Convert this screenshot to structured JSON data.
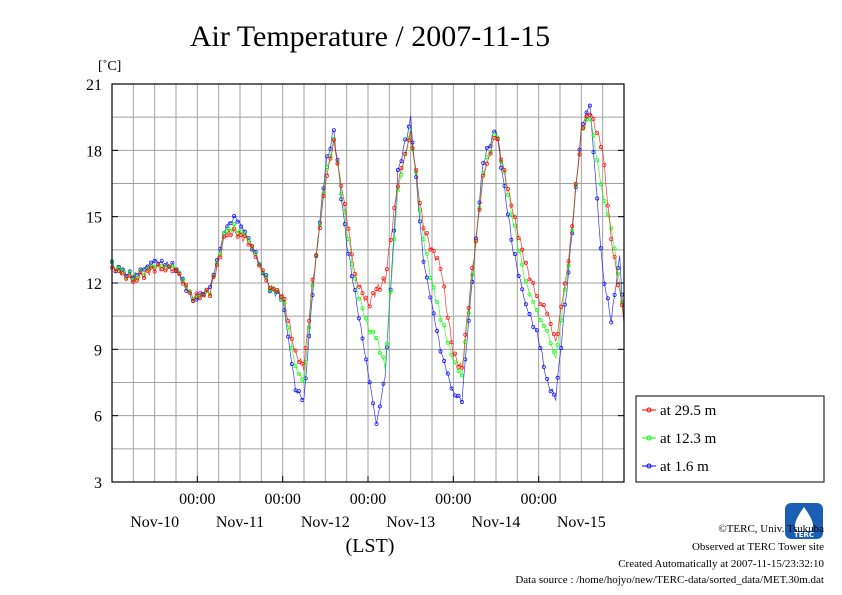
{
  "chart_data": {
    "type": "line",
    "title": "Air Temperature / 2007-11-15",
    "ylabel": "[˚C]",
    "xlabel": "(LST)",
    "ylim": [
      3,
      21
    ],
    "yticks": [
      3,
      6,
      9,
      12,
      15,
      18,
      21
    ],
    "xlim_days": [
      0,
      6
    ],
    "x_ticks": [
      {
        "pos": 1,
        "time": "00:00",
        "date": "Nov-11"
      },
      {
        "pos": 2,
        "time": "00:00",
        "date": "Nov-12"
      },
      {
        "pos": 3,
        "time": "00:00",
        "date": "Nov-13"
      },
      {
        "pos": 4,
        "time": "00:00",
        "date": "Nov-14"
      },
      {
        "pos": 5,
        "time": "00:00",
        "date": "Nov-15"
      }
    ],
    "day_labels": [
      "Nov-10",
      "Nov-11",
      "Nov-12",
      "Nov-13",
      "Nov-14",
      "Nov-15"
    ],
    "grid": true,
    "legend_position": "outside-right-bottom",
    "series": [
      {
        "name": "at 29.5 m",
        "color": "#ff0000",
        "x": [
          0,
          0.25,
          0.5,
          0.75,
          0.95,
          1.15,
          1.33,
          1.45,
          1.6,
          1.85,
          2.0,
          2.15,
          2.25,
          2.35,
          2.5,
          2.6,
          2.75,
          2.85,
          3.0,
          3.1,
          3.2,
          3.35,
          3.5,
          3.65,
          3.75,
          3.85,
          4.0,
          4.1,
          4.2,
          4.35,
          4.5,
          4.7,
          4.85,
          5.0,
          5.1,
          5.2,
          5.35,
          5.5,
          5.6,
          5.75,
          5.85,
          5.95,
          6.0
        ],
        "y": [
          12.7,
          12.1,
          12.7,
          12.6,
          11.3,
          11.6,
          14.2,
          14.3,
          13.9,
          11.8,
          11.5,
          8.8,
          8.2,
          12.0,
          16.5,
          18.4,
          15.0,
          12.3,
          11.0,
          11.7,
          12.1,
          16.5,
          18.8,
          14.5,
          13.5,
          12.8,
          8.8,
          8.1,
          11.8,
          16.8,
          18.8,
          15.2,
          12.8,
          11.2,
          10.7,
          9.3,
          13.0,
          18.8,
          19.8,
          18.0,
          14.0,
          11.6,
          10.3
        ]
      },
      {
        "name": "at 12.3 m",
        "color": "#00ff00",
        "x": [
          0,
          0.25,
          0.5,
          0.75,
          0.95,
          1.15,
          1.33,
          1.45,
          1.6,
          1.85,
          2.0,
          2.15,
          2.25,
          2.35,
          2.5,
          2.6,
          2.75,
          2.85,
          3.0,
          3.1,
          3.2,
          3.35,
          3.5,
          3.65,
          3.75,
          3.85,
          4.0,
          4.1,
          4.2,
          4.35,
          4.5,
          4.7,
          4.85,
          5.0,
          5.1,
          5.2,
          5.35,
          5.5,
          5.6,
          5.75,
          5.85,
          5.95,
          6.0
        ],
        "y": [
          12.8,
          12.2,
          12.8,
          12.7,
          11.3,
          11.6,
          14.4,
          14.5,
          14.0,
          11.8,
          11.4,
          8.2,
          7.5,
          11.8,
          16.8,
          18.5,
          14.5,
          12.0,
          10.0,
          9.5,
          8.2,
          16.2,
          18.9,
          14.0,
          12.0,
          10.5,
          8.5,
          7.8,
          11.5,
          17.0,
          18.9,
          14.8,
          12.0,
          10.5,
          9.8,
          8.6,
          12.8,
          18.8,
          19.6,
          16.0,
          14.5,
          12.0,
          10.4
        ]
      },
      {
        "name": "at 1.6 m",
        "color": "#0000ff",
        "x": [
          0,
          0.25,
          0.5,
          0.75,
          0.95,
          1.15,
          1.33,
          1.45,
          1.6,
          1.85,
          2.0,
          2.15,
          2.25,
          2.35,
          2.5,
          2.6,
          2.75,
          2.85,
          3.0,
          3.1,
          3.2,
          3.35,
          3.5,
          3.65,
          3.75,
          3.85,
          4.0,
          4.1,
          4.2,
          4.35,
          4.5,
          4.7,
          4.85,
          5.0,
          5.1,
          5.2,
          5.35,
          5.5,
          5.6,
          5.75,
          5.85,
          5.95,
          6.0
        ],
        "y": [
          12.8,
          12.3,
          13.0,
          12.7,
          11.2,
          11.8,
          14.5,
          15.0,
          14.0,
          11.8,
          11.3,
          7.2,
          6.7,
          11.5,
          17.2,
          18.9,
          13.8,
          11.5,
          8.0,
          5.6,
          7.8,
          17.0,
          19.4,
          13.0,
          11.0,
          9.0,
          7.0,
          6.7,
          11.2,
          17.5,
          19.0,
          13.5,
          11.0,
          9.5,
          7.5,
          6.8,
          12.5,
          19.0,
          20.1,
          12.5,
          10.3,
          13.2,
          10.1
        ]
      }
    ]
  },
  "footer": {
    "copyright": "©TERC, Univ. Tsukuba",
    "observed": "Observed at TERC Tower site",
    "created": "Created Automatically at 2007-11-15/23:32:10",
    "source": "Data source : /home/hojyo/new/TERC-data/sorted_data/MET.30m.dat",
    "logo_text": "TERC"
  }
}
